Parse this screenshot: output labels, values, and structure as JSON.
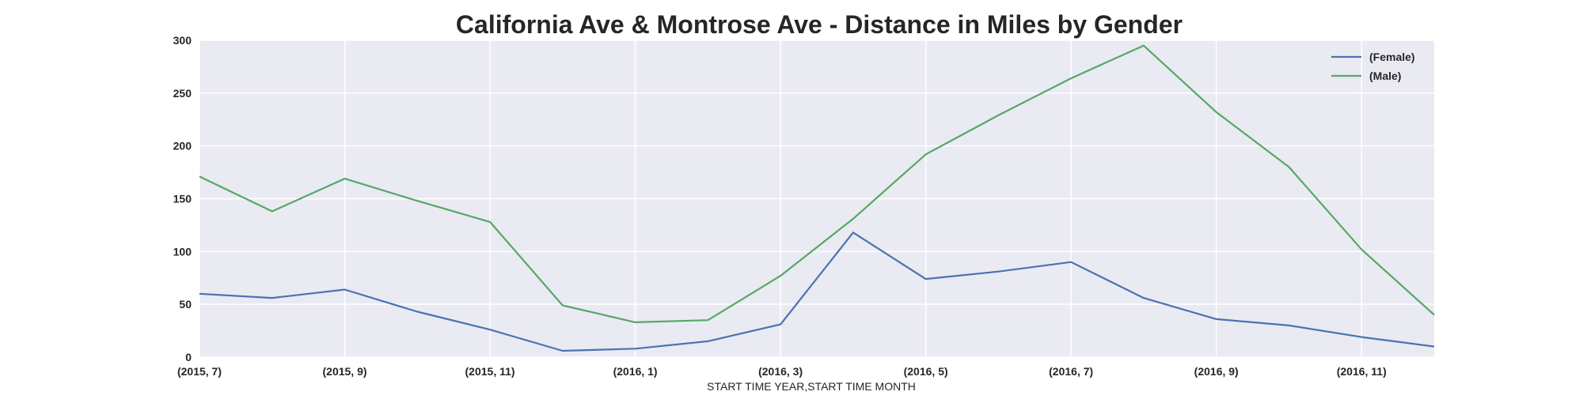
{
  "chart_data": {
    "type": "line",
    "title": "California Ave & Montrose Ave - Distance in Miles by Gender",
    "xlabel": "START TIME YEAR,START TIME MONTH",
    "ylabel": "",
    "ylim": [
      0,
      300
    ],
    "yticks": [
      0,
      50,
      100,
      150,
      200,
      250,
      300
    ],
    "categories": [
      "(2015, 7)",
      "(2015, 8)",
      "(2015, 9)",
      "(2015, 10)",
      "(2015, 11)",
      "(2015, 12)",
      "(2016, 1)",
      "(2016, 2)",
      "(2016, 3)",
      "(2016, 4)",
      "(2016, 5)",
      "(2016, 6)",
      "(2016, 7)",
      "(2016, 8)",
      "(2016, 9)",
      "(2016, 10)",
      "(2016, 11)",
      "(2016, 12)"
    ],
    "xtick_labels": [
      "(2015, 7)",
      "(2015, 9)",
      "(2015, 11)",
      "(2016, 1)",
      "(2016, 3)",
      "(2016, 5)",
      "(2016, 7)",
      "(2016, 9)",
      "(2016, 11)"
    ],
    "grid": true,
    "legend_position": "top-right",
    "background_color": "#eaeaf2",
    "series": [
      {
        "name": "(Female)",
        "color": "#4c72b0",
        "values": [
          60,
          56,
          64,
          43,
          26,
          6,
          8,
          15,
          31,
          118,
          74,
          81,
          90,
          56,
          36,
          30,
          19,
          10
        ]
      },
      {
        "name": "(Male)",
        "color": "#55a868",
        "values": [
          171,
          138,
          169,
          148,
          128,
          49,
          33,
          35,
          77,
          131,
          192,
          229,
          264,
          295,
          232,
          180,
          102,
          40
        ]
      }
    ]
  }
}
